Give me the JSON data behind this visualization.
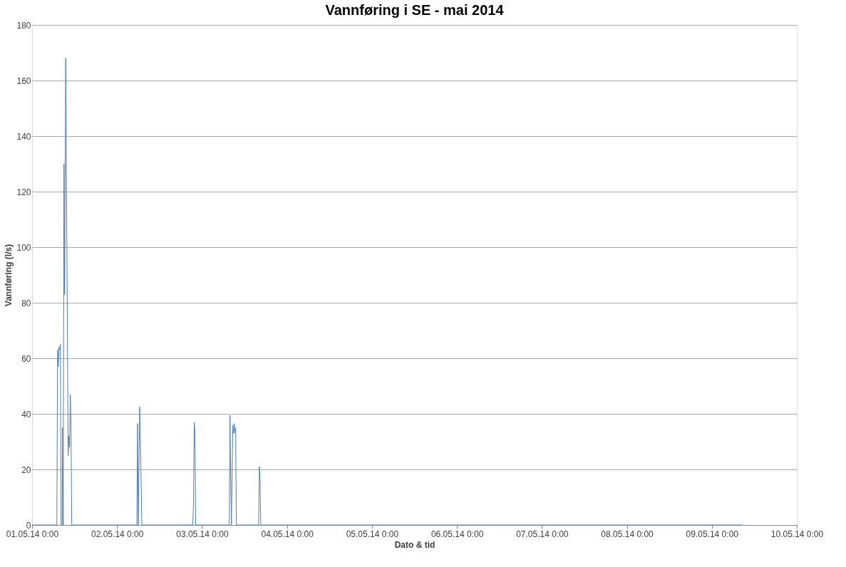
{
  "chart_data": {
    "type": "line",
    "title": "Vannføring i SE - mai 2014",
    "xlabel": "Dato & tid",
    "ylabel": "Vannføring (l/s)",
    "x": [
      "2014-05-01T00:00",
      "2014-05-01T07:00",
      "2014-05-01T07:12",
      "2014-05-01T07:24",
      "2014-05-01T07:36",
      "2014-05-01T07:48",
      "2014-05-01T08:00",
      "2014-05-01T08:12",
      "2014-05-01T08:30",
      "2014-05-01T08:36",
      "2014-05-01T08:48",
      "2014-05-01T09:00",
      "2014-05-01T09:12",
      "2014-05-01T09:30",
      "2014-05-01T10:12",
      "2014-05-01T10:24",
      "2014-05-01T10:36",
      "2014-05-01T10:48",
      "2014-05-01T11:00",
      "2014-05-01T11:12",
      "2014-05-02T05:36",
      "2014-05-02T05:48",
      "2014-05-02T06:00",
      "2014-05-02T06:24",
      "2014-05-02T06:48",
      "2014-05-02T07:00",
      "2014-05-02T21:24",
      "2014-05-02T21:36",
      "2014-05-02T21:48",
      "2014-05-02T22:00",
      "2014-05-02T22:12",
      "2014-05-03T07:42",
      "2014-05-03T07:54",
      "2014-05-03T08:06",
      "2014-05-03T08:18",
      "2014-05-03T08:42",
      "2014-05-03T08:54",
      "2014-05-03T09:06",
      "2014-05-03T09:18",
      "2014-05-03T09:30",
      "2014-05-03T09:42",
      "2014-05-03T16:00",
      "2014-05-03T16:12",
      "2014-05-03T16:24",
      "2014-05-03T16:36",
      "2014-05-09T08:36"
    ],
    "series": [
      {
        "color": "#4f81bd",
        "values": [
          0,
          0,
          63,
          57,
          64,
          63,
          65,
          0,
          0,
          35,
          0,
          130,
          83,
          168,
          25,
          32,
          28,
          47,
          35,
          0,
          0,
          36.5,
          0,
          42.5,
          17,
          0,
          0,
          8,
          37,
          34,
          0,
          0,
          39.5,
          17,
          0,
          36,
          33,
          36.5,
          33,
          35,
          0,
          0,
          21,
          16,
          0,
          0
        ]
      }
    ],
    "xlim": [
      "2014-05-01T00:00",
      "2014-05-10T00:00"
    ],
    "xticks": [
      {
        "value": "2014-05-01T00:00",
        "label": "01.05.14 0:00"
      },
      {
        "value": "2014-05-02T00:00",
        "label": "02.05.14 0:00"
      },
      {
        "value": "2014-05-03T00:00",
        "label": "03.05.14 0:00"
      },
      {
        "value": "2014-05-04T00:00",
        "label": "04.05.14 0:00"
      },
      {
        "value": "2014-05-05T00:00",
        "label": "05.05.14 0:00"
      },
      {
        "value": "2014-05-06T00:00",
        "label": "06.05.14 0:00"
      },
      {
        "value": "2014-05-07T00:00",
        "label": "07.05.14 0:00"
      },
      {
        "value": "2014-05-08T00:00",
        "label": "08.05.14 0:00"
      },
      {
        "value": "2014-05-09T00:00",
        "label": "09.05.14 0:00"
      },
      {
        "value": "2014-05-10T00:00",
        "label": "10.05.14 0:00"
      }
    ],
    "ylim": [
      0,
      180
    ],
    "yticks": [
      0,
      20,
      40,
      60,
      80,
      100,
      120,
      140,
      160,
      180
    ],
    "grid": "y",
    "marker": "none",
    "line_style": "solid"
  }
}
